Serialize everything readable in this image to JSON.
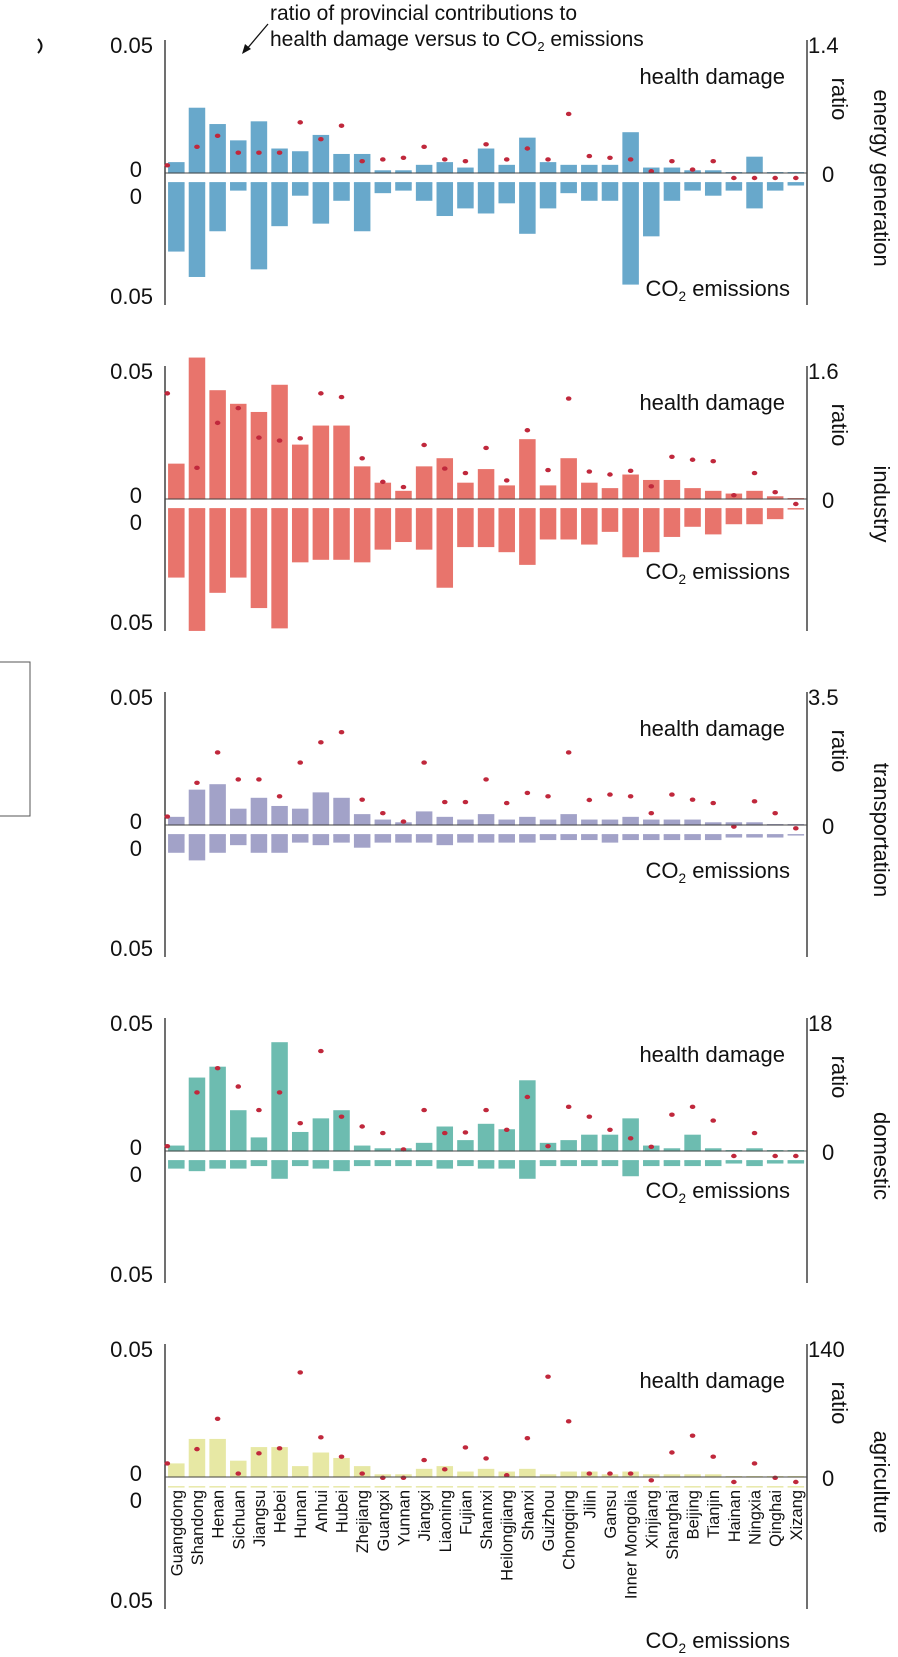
{
  "chart_data": {
    "type": "bar",
    "annotation": "ratio of provincial contributions to\nhealth damage versus to CO₂ emissions",
    "left_axis": {
      "top_label": "0.05",
      "zero_label": "0",
      "bottom_label": "0.05"
    },
    "labels": {
      "health": "health damage",
      "co2": "CO₂ emissions",
      "ratio": "ratio"
    },
    "categories": [
      "Guangdong",
      "Shandong",
      "Henan",
      "Sichuan",
      "Jiangsu",
      "Hebei",
      "Hunan",
      "Anhui",
      "Hubei",
      "Zhejiang",
      "Guangxi",
      "Yunnan",
      "Jiangxi",
      "Liaoning",
      "Fujian",
      "Shannxi",
      "Heilongjiang",
      "Shanxi",
      "Guizhou",
      "Chongqing",
      "Jilin",
      "Gansu",
      "Inner Mongolia",
      "Xinjiang",
      "Shanghai",
      "Beijing",
      "Tianjin",
      "Hainan",
      "Ningxia",
      "Qinghai",
      "Xizang"
    ],
    "panels": [
      {
        "sector": "energy generation",
        "color": "#68a8cb",
        "ratio_max_label": "1.4",
        "ratio_min_label": "0",
        "ratio_max": 1.4,
        "health": [
          0.004,
          0.024,
          0.018,
          0.012,
          0.019,
          0.009,
          0.008,
          0.014,
          0.007,
          0.007,
          0.001,
          0.001,
          0.003,
          0.004,
          0.002,
          0.009,
          0.003,
          0.013,
          0.004,
          0.003,
          0.003,
          0.003,
          0.015,
          0.002,
          0.002,
          0.001,
          0.001,
          0.0,
          0.006,
          0.0,
          0.0
        ],
        "co2": [
          0.027,
          0.037,
          0.019,
          0.003,
          0.034,
          0.017,
          0.005,
          0.016,
          0.007,
          0.019,
          0.004,
          0.003,
          0.007,
          0.013,
          0.01,
          0.012,
          0.008,
          0.02,
          0.01,
          0.004,
          0.007,
          0.007,
          0.04,
          0.021,
          0.007,
          0.003,
          0.005,
          0.003,
          0.01,
          0.003,
          0.001
        ],
        "ratio": [
          0.15,
          0.37,
          0.5,
          0.3,
          0.3,
          0.3,
          0.66,
          0.46,
          0.62,
          0.2,
          0.22,
          0.24,
          0.37,
          0.22,
          0.2,
          0.4,
          0.22,
          0.35,
          0.22,
          0.76,
          0.26,
          0.24,
          0.22,
          0.08,
          0.2,
          0.1,
          0.2,
          0.0,
          0.0,
          0.0,
          0.0
        ]
      },
      {
        "sector": "industry",
        "color": "#e8746c",
        "ratio_max_label": "1.6",
        "ratio_min_label": "0",
        "ratio_max": 1.6,
        "health": [
          0.013,
          0.052,
          0.04,
          0.035,
          0.032,
          0.042,
          0.02,
          0.027,
          0.027,
          0.012,
          0.006,
          0.003,
          0.012,
          0.015,
          0.006,
          0.011,
          0.005,
          0.022,
          0.005,
          0.015,
          0.006,
          0.004,
          0.009,
          0.007,
          0.007,
          0.004,
          0.003,
          0.002,
          0.003,
          0.001,
          0.0
        ],
        "co2": [
          0.027,
          0.048,
          0.033,
          0.027,
          0.039,
          0.047,
          0.021,
          0.02,
          0.02,
          0.021,
          0.016,
          0.013,
          0.016,
          0.031,
          0.015,
          0.015,
          0.017,
          0.022,
          0.012,
          0.012,
          0.014,
          0.009,
          0.019,
          0.017,
          0.011,
          0.007,
          0.01,
          0.006,
          0.006,
          0.004,
          0.0
        ],
        "ratio": [
          1.5,
          0.49,
          1.1,
          1.3,
          0.9,
          0.86,
          0.89,
          1.5,
          1.45,
          0.62,
          0.3,
          0.23,
          0.8,
          0.48,
          0.42,
          0.76,
          0.32,
          1.0,
          0.46,
          1.43,
          0.44,
          0.4,
          0.45,
          0.24,
          0.64,
          0.6,
          0.58,
          0.12,
          0.42,
          0.16,
          0.0
        ]
      },
      {
        "sector": "transportation",
        "color": "#a2a2c8",
        "ratio_max_label": "3.5",
        "ratio_min_label": "0",
        "ratio_max": 3.5,
        "health": [
          0.003,
          0.013,
          0.015,
          0.006,
          0.01,
          0.007,
          0.006,
          0.012,
          0.01,
          0.004,
          0.002,
          0.001,
          0.005,
          0.003,
          0.002,
          0.004,
          0.002,
          0.003,
          0.002,
          0.004,
          0.002,
          0.002,
          0.003,
          0.002,
          0.002,
          0.002,
          0.001,
          0.001,
          0.001,
          0.0,
          0.0
        ],
        "co2": [
          0.007,
          0.01,
          0.007,
          0.004,
          0.007,
          0.007,
          0.003,
          0.004,
          0.003,
          0.005,
          0.003,
          0.003,
          0.003,
          0.004,
          0.003,
          0.003,
          0.003,
          0.003,
          0.002,
          0.002,
          0.002,
          0.003,
          0.002,
          0.002,
          0.002,
          0.002,
          0.002,
          0.001,
          0.001,
          0.001,
          0.0
        ],
        "ratio": [
          0.4,
          1.4,
          2.3,
          1.5,
          1.5,
          1.0,
          2.0,
          2.6,
          2.9,
          0.9,
          0.5,
          0.25,
          2.0,
          0.83,
          0.83,
          1.5,
          0.8,
          1.1,
          1.0,
          2.3,
          0.89,
          1.05,
          1.0,
          0.5,
          1.05,
          0.9,
          0.8,
          0.1,
          0.85,
          0.5,
          0.05
        ]
      },
      {
        "sector": "domestic",
        "color": "#6dbcb0",
        "ratio_max_label": "18",
        "ratio_min_label": "0",
        "ratio_max": 18,
        "health": [
          0.002,
          0.027,
          0.031,
          0.015,
          0.005,
          0.04,
          0.007,
          0.012,
          0.015,
          0.002,
          0.001,
          0.001,
          0.003,
          0.009,
          0.004,
          0.01,
          0.008,
          0.026,
          0.003,
          0.004,
          0.006,
          0.006,
          0.012,
          0.002,
          0.001,
          0.006,
          0.001,
          0.0,
          0.001,
          0.0,
          0.0
        ],
        "co2": [
          0.003,
          0.004,
          0.003,
          0.003,
          0.002,
          0.007,
          0.002,
          0.003,
          0.004,
          0.002,
          0.002,
          0.002,
          0.002,
          0.003,
          0.002,
          0.003,
          0.003,
          0.007,
          0.002,
          0.002,
          0.002,
          0.002,
          0.006,
          0.002,
          0.002,
          0.002,
          0.002,
          0.001,
          0.002,
          0.001,
          0.001
        ],
        "ratio": [
          1.5,
          9.7,
          13.4,
          10.6,
          7.0,
          9.7,
          5.0,
          16.0,
          6.0,
          4.5,
          3.5,
          1.0,
          7.0,
          3.5,
          3.6,
          7.0,
          4.0,
          9.0,
          1.5,
          7.5,
          6.0,
          4.0,
          2.7,
          1.4,
          6.3,
          7.5,
          5.4,
          0.0,
          3.5,
          0.0,
          0.0
        ]
      },
      {
        "sector": "agriculture",
        "color": "#e7e8a4",
        "ratio_max_label": "140",
        "ratio_min_label": "0",
        "ratio_max": 140,
        "health": [
          0.005,
          0.014,
          0.014,
          0.006,
          0.011,
          0.011,
          0.004,
          0.009,
          0.007,
          0.004,
          0.001,
          0.001,
          0.003,
          0.004,
          0.002,
          0.003,
          0.002,
          0.003,
          0.001,
          0.002,
          0.002,
          0.001,
          0.002,
          0.001,
          0.001,
          0.001,
          0.001,
          0.0,
          0.0,
          0.0,
          0.0
        ],
        "co2": [
          0.0,
          0.0,
          0.0,
          0.0,
          0.0,
          0.0,
          0.0,
          0.0,
          0.0,
          0.0,
          0.0,
          0.0,
          0.0,
          0.0,
          0.0,
          0.0,
          0.0,
          0.0,
          0.0,
          0.0,
          0.0,
          0.0,
          0.0,
          0.0,
          0.0,
          0.0,
          0.0,
          0.0,
          0.0,
          0.0,
          0.0
        ],
        "ratio": [
          22,
          39,
          75,
          10,
          34,
          40,
          130,
          53,
          30,
          10,
          5,
          5,
          26,
          15,
          41,
          28,
          8,
          52,
          125,
          72,
          10,
          10,
          10,
          2,
          35,
          55,
          30,
          0,
          22,
          5,
          0
        ]
      }
    ]
  }
}
